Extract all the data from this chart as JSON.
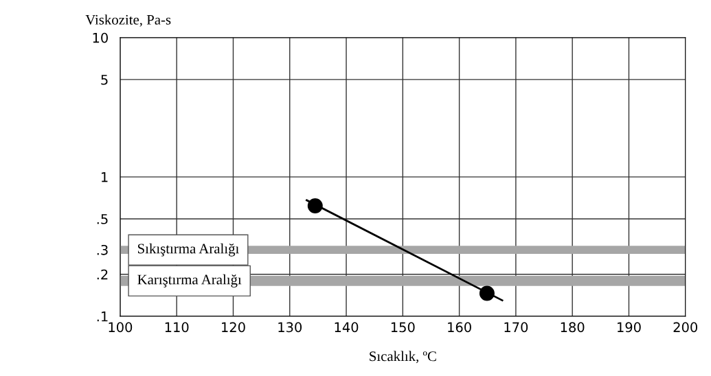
{
  "chart_data": {
    "type": "line",
    "xlabel": "Sıcaklık, ºC",
    "ylabel": "Viskozite, Pa-s",
    "series": [
      {
        "color": "#000000",
        "marker": "none",
        "x": [
          133,
          167.6
        ],
        "values": [
          0.68,
          0.13
        ]
      },
      {
        "type": "scatter",
        "color": "#000000",
        "marker": "circle",
        "x": [
          134.5,
          164.9
        ],
        "values": [
          0.62,
          0.146
        ]
      }
    ],
    "bands": [
      {
        "axis": "y",
        "from": 0.28,
        "to": 0.32,
        "label": "Sıkıştırma Aralığı",
        "color": "#a6a6a6"
      },
      {
        "axis": "y",
        "from": 0.165,
        "to": 0.195,
        "label": "Karıştırma Aralığı",
        "color": "#a6a6a6"
      }
    ],
    "log": "y",
    "xlim": [
      100,
      200
    ],
    "xticks": [
      100,
      110,
      120,
      130,
      140,
      150,
      160,
      170,
      180,
      190,
      200
    ],
    "ylim": [
      0.1,
      10
    ],
    "yticks": [
      {
        "value": 0.1,
        "label": ".1"
      },
      {
        "value": 0.2,
        "label": ".2"
      },
      {
        "value": 0.3,
        "label": ".3"
      },
      {
        "value": 0.5,
        "label": ".5"
      },
      1,
      5,
      10
    ],
    "grid": true
  }
}
